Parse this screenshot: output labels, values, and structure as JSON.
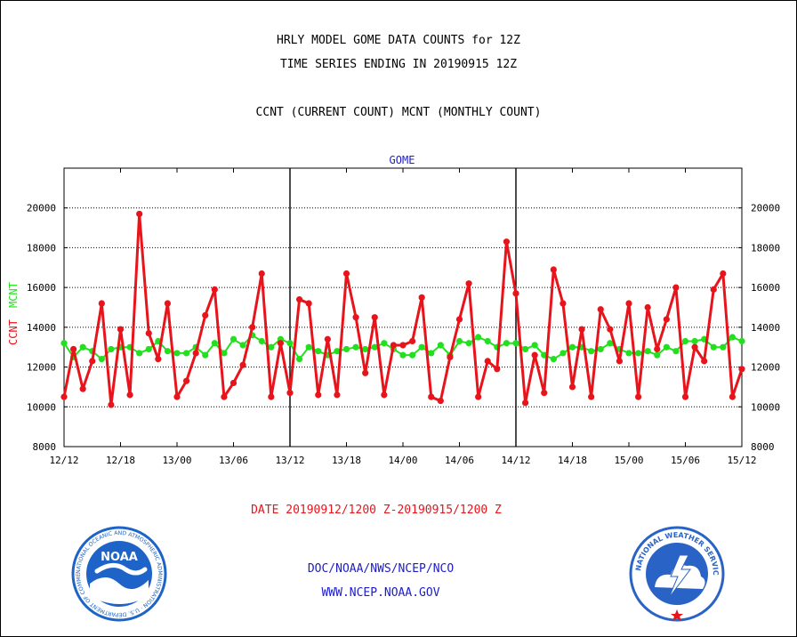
{
  "header": {
    "line1": "HRLY MODEL GOME DATA COUNTS for 12Z",
    "line2": "TIME SERIES ENDING IN 20190915 12Z",
    "line3": "CCNT (CURRENT COUNT) MCNT (MONTHLY COUNT)"
  },
  "footer": {
    "date_range": "DATE 20190912/1200 Z-20190915/1200 Z",
    "doc": "DOC/NOAA/NWS/NCEP/NCO",
    "www": "WWW.NCEP.NOAA.GOV"
  },
  "logos": {
    "noaa_text": "NOAA",
    "noaa_ring": "NATIONAL OCEANIC AND ATMOSPHERIC ADMINISTRATION · U.S. DEPARTMENT OF COMMERCE ·",
    "nws_ring": "NATIONAL WEATHER SERVICE"
  },
  "colors": {
    "ccnt": "#e8141b",
    "mcnt": "#22e01e",
    "title_blue": "#1c1cc8",
    "noaa_blue": "#1e64c8",
    "nws_blue": "#2a63c6"
  },
  "chart_data": {
    "type": "line",
    "title": "GOME",
    "ylabel_left": [
      "CCNT",
      "MCNT"
    ],
    "ylim": [
      8000,
      22000
    ],
    "yticks": [
      8000,
      10000,
      12000,
      14000,
      16000,
      18000,
      20000
    ],
    "ytick_labels": [
      "8000",
      "10000",
      "12000",
      "14000",
      "16000",
      "18000",
      "20000"
    ],
    "xlim": [
      0,
      72
    ],
    "xticks": [
      0,
      6,
      12,
      18,
      24,
      30,
      36,
      42,
      48,
      54,
      60,
      66,
      72
    ],
    "xtick_labels": [
      "12/12",
      "12/18",
      "13/00",
      "13/06",
      "13/12",
      "13/18",
      "14/00",
      "14/06",
      "14/12",
      "14/18",
      "15/00",
      "15/06",
      "15/12"
    ],
    "day_separators": [
      24,
      48
    ],
    "grid": "horizontal dotted",
    "series": [
      {
        "name": "CCNT",
        "color": "#e8141b",
        "values": [
          10500,
          12900,
          10900,
          12300,
          15200,
          10100,
          13900,
          10600,
          19700,
          13700,
          12400,
          15200,
          10500,
          11300,
          12700,
          14600,
          15900,
          10500,
          11200,
          12100,
          14000,
          16700,
          10500,
          13200,
          10700,
          15400,
          15200,
          10600,
          13400,
          10600,
          16700,
          14500,
          11700,
          14500,
          10600,
          13100,
          13100,
          13300,
          15500,
          10500,
          10300,
          12500,
          14400,
          16200,
          10500,
          12300,
          11900,
          18300,
          15700,
          10200,
          12600,
          10700,
          16900,
          15200,
          11000,
          13900,
          10500,
          14900,
          13900,
          12300,
          15200,
          10500,
          15000,
          12900,
          14400,
          16000,
          10500,
          13000,
          12300,
          15900,
          16700,
          10500,
          11900
        ]
      },
      {
        "name": "MCNT",
        "color": "#22e01e",
        "values": [
          13200,
          12500,
          13000,
          12800,
          12400,
          12900,
          13000,
          13000,
          12700,
          12900,
          13300,
          12800,
          12700,
          12700,
          13000,
          12600,
          13200,
          12700,
          13400,
          13100,
          13600,
          13300,
          13000,
          13400,
          13200,
          12400,
          13000,
          12800,
          12600,
          12800,
          12900,
          13000,
          12900,
          13000,
          13200,
          12900,
          12600,
          12600,
          13000,
          12700,
          13100,
          12600,
          13300,
          13200,
          13500,
          13300,
          13000,
          13200,
          13200,
          12900,
          13100,
          12600,
          12400,
          12700,
          13000,
          13000,
          12800,
          12900,
          13200,
          12900,
          12700,
          12700,
          12800,
          12600,
          13000,
          12800,
          13300,
          13300,
          13400,
          13000,
          13000,
          13500,
          13300
        ]
      }
    ]
  }
}
